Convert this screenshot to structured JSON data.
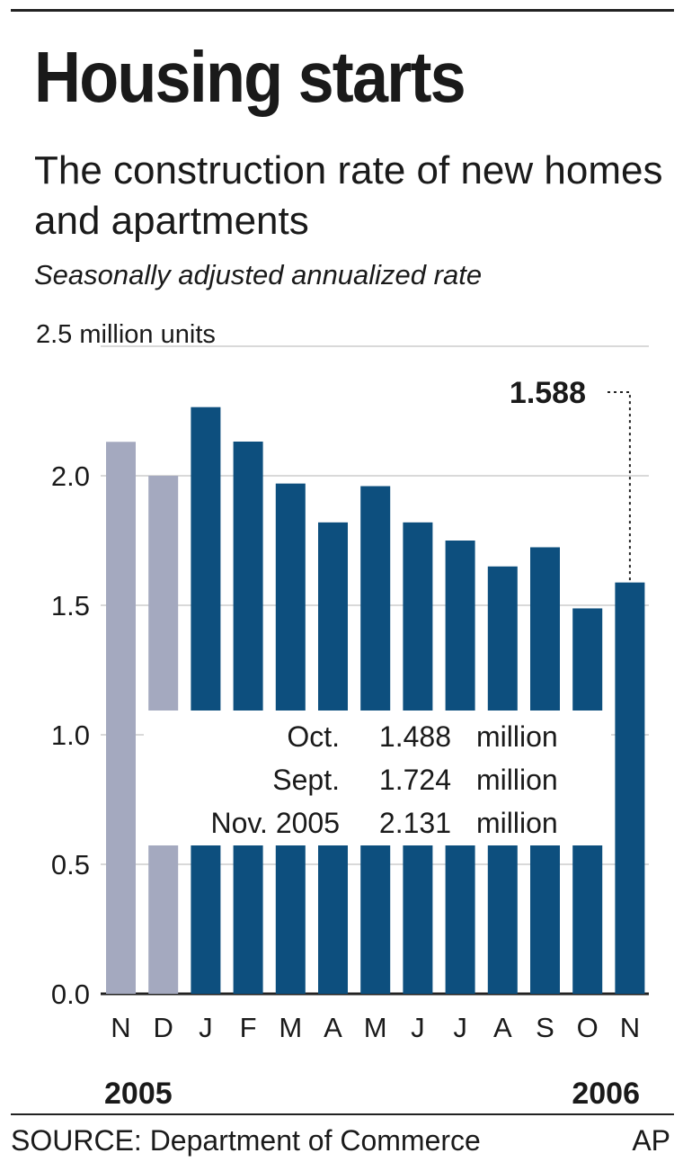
{
  "header": {
    "title": "Housing starts",
    "subtitle": "The construction rate of new homes and apartments",
    "note": "Seasonally adjusted annualized rate"
  },
  "footer": {
    "source": "SOURCE: Department of Commerce",
    "credit": "AP"
  },
  "colors": {
    "bar_2006": "#0d4f7e",
    "bar_2005": "#a4a9bf",
    "gridline": "#d9d9d9",
    "text": "#1a1a1a"
  },
  "chart_data": {
    "type": "bar",
    "categories": [
      "N",
      "D",
      "J",
      "F",
      "M",
      "A",
      "M",
      "J",
      "J",
      "A",
      "S",
      "O",
      "N"
    ],
    "values": [
      2.131,
      2.0,
      2.265,
      2.132,
      1.97,
      1.82,
      1.96,
      1.82,
      1.75,
      1.65,
      1.724,
      1.488,
      1.588
    ],
    "year_groups": [
      {
        "label": "2005",
        "color": "#a4a9bf"
      },
      {
        "label": "2005",
        "color": "#a4a9bf"
      },
      {
        "label": "2006",
        "color": "#0d4f7e"
      },
      {
        "label": "2006",
        "color": "#0d4f7e"
      },
      {
        "label": "2006",
        "color": "#0d4f7e"
      },
      {
        "label": "2006",
        "color": "#0d4f7e"
      },
      {
        "label": "2006",
        "color": "#0d4f7e"
      },
      {
        "label": "2006",
        "color": "#0d4f7e"
      },
      {
        "label": "2006",
        "color": "#0d4f7e"
      },
      {
        "label": "2006",
        "color": "#0d4f7e"
      },
      {
        "label": "2006",
        "color": "#0d4f7e"
      },
      {
        "label": "2006",
        "color": "#0d4f7e"
      },
      {
        "label": "2006",
        "color": "#0d4f7e"
      }
    ],
    "year_labels": [
      "2005",
      "2006"
    ],
    "ylim": [
      0,
      2.5
    ],
    "yticks": [
      "0.0",
      "0.5",
      "1.0",
      "1.5",
      "2.0",
      "2.5 million units"
    ],
    "ytick_values": [
      0,
      0.5,
      1.0,
      1.5,
      2.0,
      2.5
    ],
    "grid": true,
    "callout": {
      "label": "1.588",
      "category_index": 12
    },
    "annotation_table": [
      {
        "period": "Oct.",
        "value": "1.488",
        "unit": "million"
      },
      {
        "period": "Sept.",
        "value": "1.724",
        "unit": "million"
      },
      {
        "period": "Nov. 2005",
        "value": "2.131",
        "unit": "million"
      }
    ]
  }
}
